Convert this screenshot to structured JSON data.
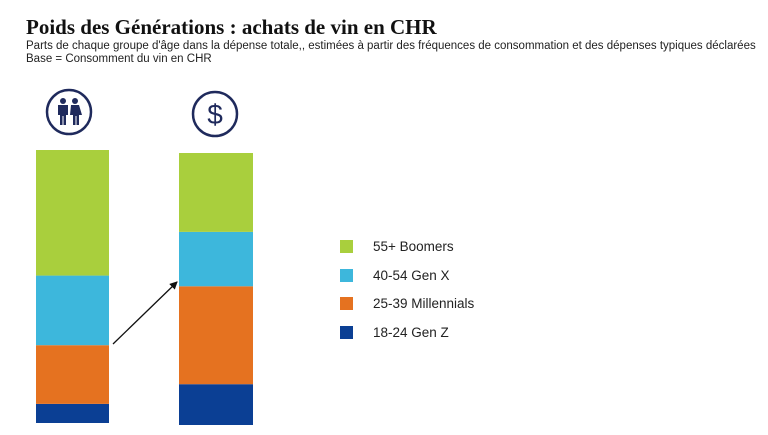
{
  "chart_data": {
    "type": "bar",
    "stacked": true,
    "normalized": true,
    "title": "Poids des Générations : achats de vin en CHR",
    "subtitle": "Parts de chaque groupe d'âge dans la dépense totale,, estimées à partir des fréquences de consommation et des dépenses typiques déclarées",
    "base_note": "Base = Consomment du vin en CHR",
    "categories": [
      "people-icon",
      "dollar-icon"
    ],
    "ylim": [
      0,
      100
    ],
    "grid": false,
    "legend_position": "right",
    "series": [
      {
        "name": "18-24 Gen Z",
        "color": "#0b3f94",
        "values": [
          7,
          15
        ]
      },
      {
        "name": "25-39 Millennials",
        "color": "#e57220",
        "values": [
          21.5,
          36
        ]
      },
      {
        "name": "40-54 Gen X",
        "color": "#3db7dc",
        "values": [
          25.5,
          20
        ]
      },
      {
        "name": "55+ Boomers",
        "color": "#a9cf3d",
        "values": [
          46,
          29
        ]
      }
    ],
    "annotation": "arrow-from-bar1-to-bar2"
  },
  "icon_color": "#1f2a5c"
}
